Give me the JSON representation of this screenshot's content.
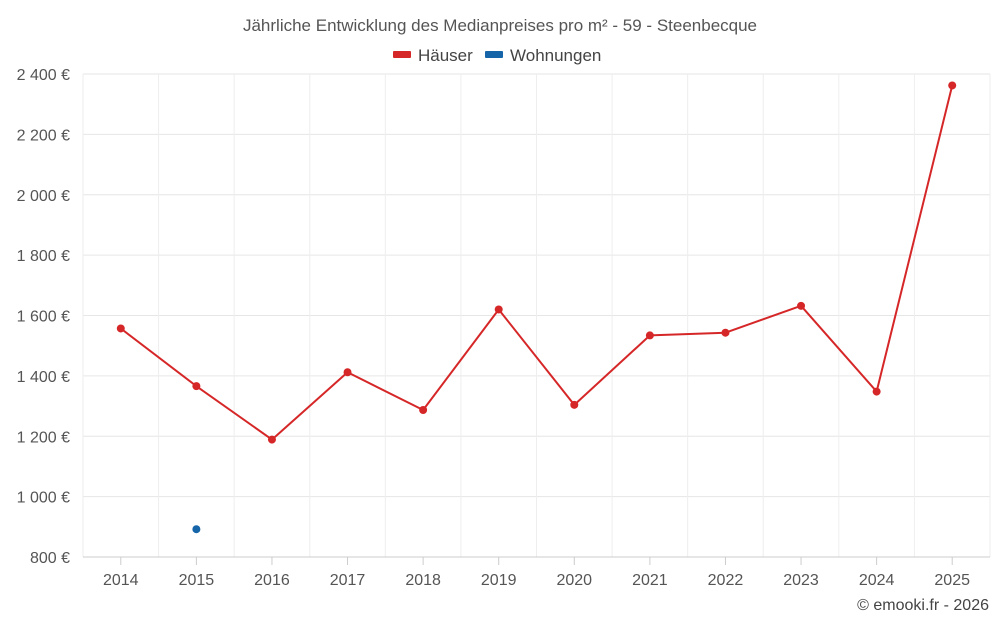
{
  "chart_data": {
    "type": "line",
    "title": "Jährliche Entwicklung des Medianpreises pro m² - 59 - Steenbecque",
    "xlabel": "",
    "ylabel": "",
    "categories": [
      "2014",
      "2015",
      "2016",
      "2017",
      "2018",
      "2019",
      "2020",
      "2021",
      "2022",
      "2023",
      "2024",
      "2025"
    ],
    "ylim": [
      800,
      2400
    ],
    "yticks": [
      800,
      1000,
      1200,
      1400,
      1600,
      1800,
      2000,
      2200,
      2400
    ],
    "ytick_labels": [
      "800 €",
      "1 000 €",
      "1 200 €",
      "1 400 €",
      "1 600 €",
      "1 800 €",
      "2 000 €",
      "2 200 €",
      "2 400 €"
    ],
    "grid": true,
    "legend_position": "top-center",
    "series": [
      {
        "name": "Häuser",
        "color": "#d62728",
        "values": [
          1557,
          1366,
          1189,
          1412,
          1287,
          1620,
          1304,
          1534,
          1543,
          1632,
          1348,
          2362
        ]
      },
      {
        "name": "Wohnungen",
        "color": "#1565a8",
        "values": [
          null,
          892,
          null,
          null,
          null,
          null,
          null,
          null,
          null,
          null,
          null,
          null
        ]
      }
    ],
    "credit": "© emooki.fr - 2026"
  }
}
